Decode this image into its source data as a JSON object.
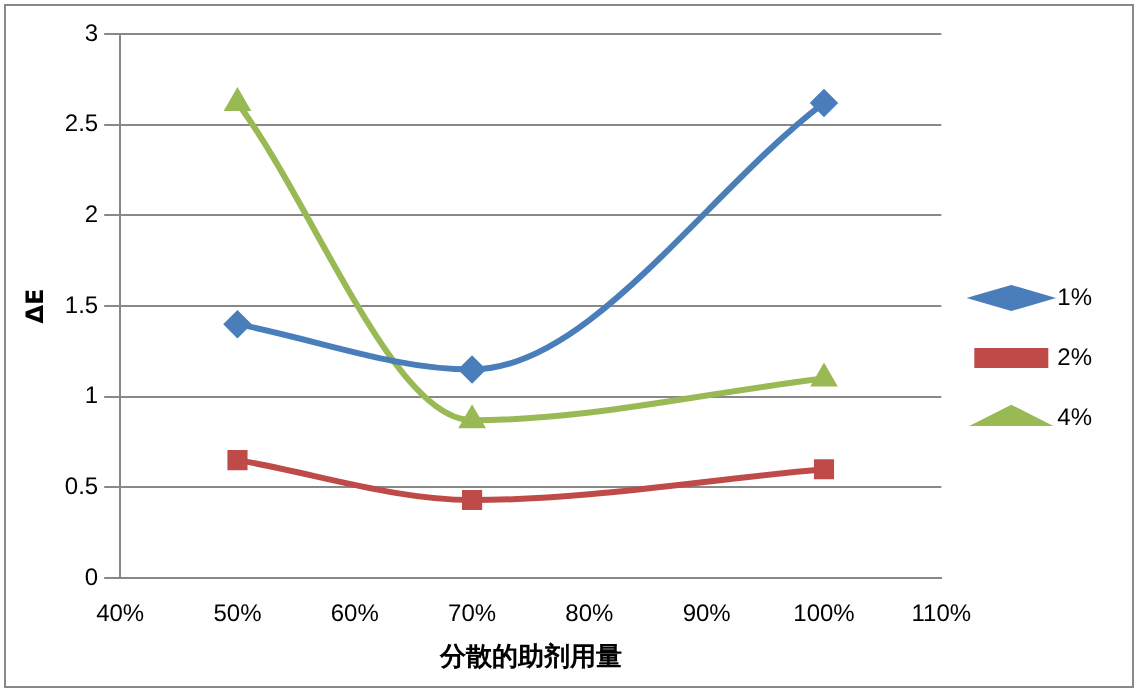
{
  "chart_data": {
    "type": "line",
    "xlabel": "分散的助剂用量",
    "ylabel": "ΔE",
    "x": [
      50,
      70,
      100
    ],
    "series": [
      {
        "name": "1%",
        "color": "#4a7ebb",
        "marker": "diamond",
        "values": [
          1.4,
          1.15,
          2.62
        ]
      },
      {
        "name": "2%",
        "color": "#be4b48",
        "marker": "square",
        "values": [
          0.65,
          0.43,
          0.6
        ]
      },
      {
        "name": "4%",
        "color": "#98b954",
        "marker": "triangle",
        "values": [
          2.62,
          0.87,
          1.1
        ]
      }
    ],
    "xlim": [
      40,
      110
    ],
    "xticks": [
      {
        "value": 40,
        "label": "40%"
      },
      {
        "value": 50,
        "label": "50%"
      },
      {
        "value": 60,
        "label": "60%"
      },
      {
        "value": 70,
        "label": "70%"
      },
      {
        "value": 80,
        "label": "80%"
      },
      {
        "value": 90,
        "label": "90%"
      },
      {
        "value": 100,
        "label": "100%"
      },
      {
        "value": 110,
        "label": "110%"
      }
    ],
    "ylim": [
      0,
      3
    ],
    "yticks": [
      0,
      0.5,
      1,
      1.5,
      2,
      2.5,
      3
    ],
    "grid": "y",
    "legend": "right",
    "line_style": "solid"
  }
}
